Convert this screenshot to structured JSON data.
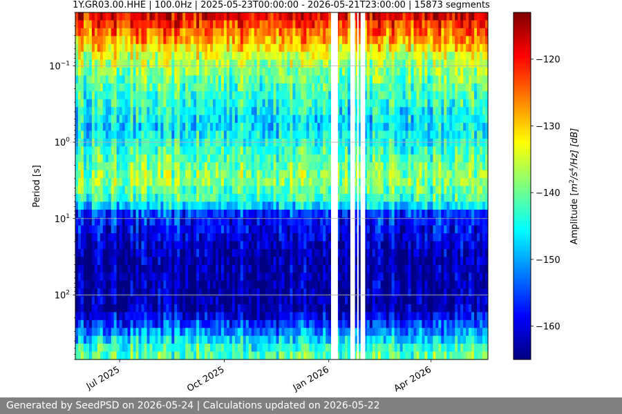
{
  "chart_data": {
    "type": "heatmap",
    "title": "1Y.GR03.00.HHE | 100.0Hz | 2025-05-23T00:00:00 - 2026-05-21T23:00:00 | 15873 segments",
    "xlabel": "",
    "ylabel": "Period [s]",
    "colorbar_label": "Amplitude [m²/s⁴/Hz] [dB]",
    "colorbar_label_parts": {
      "pre": "Amplitude [",
      "m": "m",
      "exp1": "2",
      "mid": "/s",
      "exp2": "4",
      "post": "/Hz] [dB]"
    },
    "x_ticks": [
      "Jul 2025",
      "Oct 2025",
      "Jan 2026",
      "Apr 2026"
    ],
    "x_range": [
      "2025-05-23",
      "2026-05-21"
    ],
    "y_scale": "log",
    "y_range_s": [
      0.02,
      700
    ],
    "y_ticks": [
      {
        "value": 0.1,
        "mant": "10",
        "exp": "−1"
      },
      {
        "value": 1,
        "mant": "10",
        "exp": "0"
      },
      {
        "value": 10,
        "mant": "10",
        "exp": "1"
      },
      {
        "value": 100,
        "mant": "10",
        "exp": "2"
      }
    ],
    "colorbar_ticks": [
      -120,
      -130,
      -140,
      -150,
      -160
    ],
    "colorbar_tick_labels": [
      "−120",
      "−130",
      "−140",
      "−150",
      "−160"
    ],
    "color_range_db": [
      -165,
      -113
    ],
    "colormap": "jet",
    "grid": true,
    "data_gaps": [
      [
        "2026-01-03",
        "2026-01-09"
      ],
      [
        "2026-01-20",
        "2026-01-24"
      ],
      [
        "2026-01-26",
        "2026-01-27"
      ],
      [
        "2026-01-29",
        "2026-02-02"
      ]
    ],
    "profile_db": [
      {
        "period_s": 0.02,
        "db": -117
      },
      {
        "period_s": 0.03,
        "db": -123
      },
      {
        "period_s": 0.05,
        "db": -129
      },
      {
        "period_s": 0.08,
        "db": -136
      },
      {
        "period_s": 0.2,
        "db": -142
      },
      {
        "period_s": 0.6,
        "db": -147
      },
      {
        "period_s": 3,
        "db": -138
      },
      {
        "period_s": 6,
        "db": -143
      },
      {
        "period_s": 9,
        "db": -157
      },
      {
        "period_s": 30,
        "db": -163
      },
      {
        "period_s": 150,
        "db": -163
      },
      {
        "period_s": 250,
        "db": -155
      },
      {
        "period_s": 500,
        "db": -143
      },
      {
        "period_s": 700,
        "db": -140
      }
    ]
  },
  "footer": {
    "text": "Generated by SeedPSD on 2026-05-24 | Calculations updated on 2026-05-22"
  }
}
